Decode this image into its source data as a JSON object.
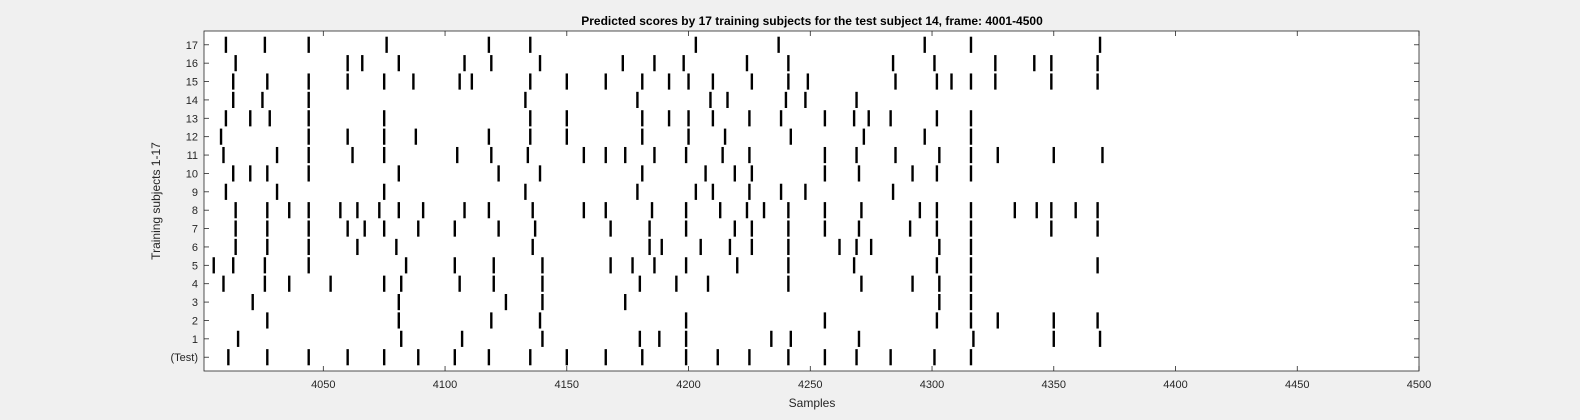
{
  "chart_data": {
    "type": "raster",
    "title": "Predicted scores by 17 training subjects for the test subject 14, frame: 4001-4500",
    "xlabel": "Samples",
    "ylabel": "Training subjects 1-17",
    "xlim": [
      4001,
      4500
    ],
    "x_ticks": [
      4050,
      4100,
      4150,
      4200,
      4250,
      4300,
      4350,
      4400,
      4450,
      4500
    ],
    "y_ticks": [
      "(Test)",
      "1",
      "2",
      "3",
      "4",
      "5",
      "6",
      "7",
      "8",
      "9",
      "10",
      "11",
      "12",
      "13",
      "14",
      "15",
      "16",
      "17"
    ],
    "grid": false,
    "legend": "none",
    "colors": {
      "background": "#f0f0f0",
      "axes_face": "#ffffff",
      "mark": "#000000",
      "text": "#262626"
    },
    "rows": [
      {
        "label": "(Test)",
        "x": [
          4011,
          4027,
          4044,
          4060,
          4075,
          4089,
          4104,
          4118,
          4135,
          4150,
          4166,
          4181,
          4199,
          4212,
          4225,
          4241,
          4256,
          4269,
          4283,
          4301,
          4316
        ]
      },
      {
        "label": "1",
        "x": [
          4015,
          4082,
          4107,
          4140,
          4180,
          4188,
          4199,
          4234,
          4242,
          4270,
          4317,
          4350,
          4369
        ]
      },
      {
        "label": "2",
        "x": [
          4027,
          4081,
          4119,
          4139,
          4199,
          4256,
          4302,
          4316,
          4327,
          4350,
          4368
        ]
      },
      {
        "label": "3",
        "x": [
          4021,
          4081,
          4125,
          4140,
          4174,
          4303,
          4316
        ]
      },
      {
        "label": "4",
        "x": [
          4009,
          4026,
          4036,
          4053,
          4075,
          4082,
          4106,
          4120,
          4140,
          4180,
          4195,
          4208,
          4241,
          4271,
          4292,
          4303,
          4316
        ]
      },
      {
        "label": "5",
        "x": [
          4005,
          4013,
          4026,
          4044,
          4084,
          4104,
          4120,
          4140,
          4168,
          4177,
          4186,
          4199,
          4220,
          4241,
          4268,
          4302,
          4316,
          4368
        ]
      },
      {
        "label": "6",
        "x": [
          4014,
          4027,
          4044,
          4064,
          4080,
          4136,
          4184,
          4189,
          4205,
          4217,
          4226,
          4241,
          4262,
          4269,
          4275,
          4303,
          4316
        ]
      },
      {
        "label": "7",
        "x": [
          4014,
          4027,
          4044,
          4060,
          4067,
          4075,
          4089,
          4104,
          4122,
          4137,
          4168,
          4184,
          4199,
          4219,
          4226,
          4241,
          4256,
          4270,
          4291,
          4302,
          4316,
          4349,
          4368
        ]
      },
      {
        "label": "8",
        "x": [
          4014,
          4027,
          4036,
          4044,
          4057,
          4064,
          4073,
          4081,
          4091,
          4108,
          4118,
          4136,
          4157,
          4166,
          4185,
          4199,
          4213,
          4224,
          4231,
          4241,
          4256,
          4271,
          4295,
          4302,
          4316,
          4334,
          4343,
          4349,
          4359,
          4368
        ]
      },
      {
        "label": "9",
        "x": [
          4010,
          4031,
          4075,
          4133,
          4179,
          4203,
          4210,
          4225,
          4238,
          4248,
          4284
        ]
      },
      {
        "label": "10",
        "x": [
          4013,
          4020,
          4027,
          4044,
          4081,
          4122,
          4139,
          4181,
          4207,
          4219,
          4226,
          4256,
          4270,
          4292,
          4302,
          4316
        ]
      },
      {
        "label": "11",
        "x": [
          4009,
          4031,
          4044,
          4062,
          4075,
          4105,
          4119,
          4134,
          4157,
          4166,
          4174,
          4186,
          4199,
          4214,
          4225,
          4256,
          4269,
          4285,
          4303,
          4316,
          4327,
          4350,
          4370
        ]
      },
      {
        "label": "12",
        "x": [
          4008,
          4044,
          4060,
          4075,
          4088,
          4118,
          4135,
          4150,
          4181,
          4200,
          4215,
          4242,
          4272,
          4297,
          4316
        ]
      },
      {
        "label": "13",
        "x": [
          4010,
          4020,
          4028,
          4044,
          4075,
          4135,
          4150,
          4181,
          4192,
          4200,
          4210,
          4225,
          4238,
          4256,
          4268,
          4274,
          4283,
          4302,
          4316
        ]
      },
      {
        "label": "14",
        "x": [
          4013,
          4025,
          4044,
          4133,
          4179,
          4209,
          4216,
          4240,
          4248,
          4269
        ]
      },
      {
        "label": "15",
        "x": [
          4013,
          4027,
          4044,
          4060,
          4075,
          4087,
          4106,
          4111,
          4135,
          4150,
          4166,
          4181,
          4192,
          4200,
          4210,
          4226,
          4241,
          4249,
          4285,
          4302,
          4308,
          4316,
          4326,
          4349,
          4368
        ]
      },
      {
        "label": "16",
        "x": [
          4014,
          4060,
          4066,
          4081,
          4108,
          4119,
          4139,
          4173,
          4186,
          4198,
          4224,
          4241,
          4284,
          4301,
          4326,
          4342,
          4349,
          4368
        ]
      },
      {
        "label": "17",
        "x": [
          4010,
          4026,
          4044,
          4076,
          4118,
          4135,
          4203,
          4237,
          4297,
          4316,
          4369
        ]
      }
    ]
  }
}
